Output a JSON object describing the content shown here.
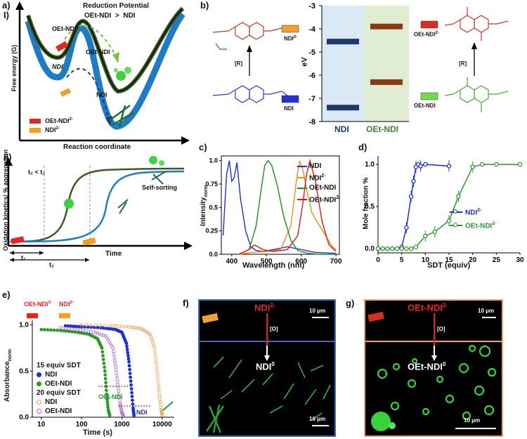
{
  "panel_a": {
    "label": "a)",
    "sub_I": "I)",
    "sub_II": "II)",
    "title_line1": "Reduction Potential",
    "title_line2": "OEt-NDI  >  NDI",
    "y_axis": "Free energy (G)",
    "x_axis": "Reaction coordinate",
    "labels": [
      "OEt-NDI2-",
      "OEt-NDI",
      "NDI-",
      "NDI"
    ],
    "legend": [
      {
        "text": "OEt-NDI",
        "sup": "2-",
        "color": "#e52420"
      },
      {
        "text": "NDI",
        "sup": "2-",
        "color": "#f39c2a"
      }
    ],
    "kin_y_axis": "Oxidation kinetics/ % aggregation",
    "kin_x_axis": "Time",
    "t_compare": "t₂ < t₂",
    "self_sorting": "Self-sorting",
    "t1": "t₁",
    "t2": "t₂",
    "colors": {
      "green": "#3a5a22",
      "blue": "#1e7bc4"
    }
  },
  "panel_b": {
    "label": "b)",
    "y_axis": "eV",
    "ticks": [
      "-3",
      "-4",
      "-5",
      "-6",
      "-7",
      "-8"
    ],
    "columns": [
      "NDI",
      "OEt-NDI"
    ],
    "mol_labels": [
      "NDI2-",
      "NDI",
      "OEt-NDI2-",
      "OEt-NDI"
    ],
    "arrow_label": "[R]",
    "levels": {
      "NDI": [
        -4.55,
        -7.4
      ],
      "OEt-NDI": [
        -3.9,
        -6.3
      ]
    },
    "colors": {
      "ndi": "#1d3a6b",
      "oet": "#8b3a12",
      "ndi_bg": "#dbe8f5",
      "oet_bg": "#e1edd3"
    }
  },
  "panel_c": {
    "label": "c)",
    "xlabel": "Wavelength (nm)",
    "ylabel": "Intensity",
    "ylabel_sub": "norm",
    "xticks": [
      "400",
      "500",
      "600",
      "700"
    ],
    "yticks": [
      "0.0",
      "0.25",
      "0.5",
      "0.75",
      "1.0"
    ],
    "legend": [
      {
        "name": "NDI",
        "color": "#1f2fd0"
      },
      {
        "name": "NDI2-",
        "color": "#f28c1a"
      },
      {
        "name": "OEt-NDI",
        "color": "#1e8c1e"
      },
      {
        "name": "OEt-NDI2-",
        "color": "#e01818"
      }
    ]
  },
  "panel_d": {
    "label": "d)",
    "xlabel": "SDT (equiv)",
    "ylabel": "Mole fraction %",
    "xticks": [
      "0",
      "5",
      "10",
      "15",
      "20",
      "25",
      "30"
    ],
    "yticks": [
      "0.0",
      "0.5",
      "1.0"
    ],
    "legend": [
      {
        "name": "NDI2-",
        "color": "#1f2fd0"
      },
      {
        "name": "OEt-NDI2-",
        "color": "#2d9a2d"
      }
    ]
  },
  "panel_e": {
    "label": "e)",
    "top_legend": [
      "OEt-NDI2-",
      "NDI2-"
    ],
    "ylabel": "Absorbance",
    "ylabel_sub": "norm",
    "xlabel": "Time (s)",
    "xticks": [
      "10",
      "100",
      "1000",
      "10000"
    ],
    "yticks": [
      "0.0",
      "0.5",
      "1.0"
    ],
    "group1": "15 equiv SDT",
    "group2": "20 equiv SDT",
    "items": [
      "NDI",
      "OEt-NDI",
      "NDI",
      "OEt-NDI"
    ],
    "inner_labels": [
      "OEt-NDI",
      "NDI"
    ]
  },
  "panel_f": {
    "label": "f)",
    "top_text": "NDI2-",
    "ox": "[O]",
    "product": "NDI0",
    "scale1": "10 μm",
    "scale2": "10 μm"
  },
  "panel_g": {
    "label": "g)",
    "top_text": "OEt-NDI2-",
    "ox": "[O]",
    "product": "OEt-NDI0",
    "scale1": "10 μm",
    "scale2": "10 μm"
  },
  "chart_data": [
    {
      "type": "line",
      "title": "",
      "xlabel": "Wavelength (nm)",
      "ylabel": "Intensity norm",
      "xlim": [
        370,
        710
      ],
      "ylim": [
        0,
        1.05
      ],
      "series": [
        {
          "name": "NDI",
          "x": [
            375,
            385,
            393,
            400,
            407,
            415,
            425,
            440,
            455,
            470,
            490,
            520,
            560,
            600,
            640,
            700
          ],
          "y": [
            0.2,
            0.85,
            1.0,
            0.78,
            0.82,
            0.98,
            0.6,
            0.25,
            0.08,
            0.04,
            0.03,
            0.05,
            0.08,
            0.05,
            0.02,
            0.01
          ]
        },
        {
          "name": "NDI2-",
          "x": [
            420,
            460,
            500,
            540,
            570,
            585,
            595,
            605,
            615,
            630,
            650,
            670,
            690,
            700
          ],
          "y": [
            0.0,
            0.02,
            0.03,
            0.05,
            0.3,
            0.75,
            1.0,
            0.9,
            0.7,
            0.45,
            0.32,
            0.2,
            0.08,
            0.05
          ]
        },
        {
          "name": "OEt-NDI",
          "x": [
            420,
            450,
            470,
            485,
            495,
            505,
            515,
            530,
            550,
            570,
            590,
            620,
            650,
            700
          ],
          "y": [
            0.0,
            0.05,
            0.3,
            0.7,
            0.95,
            1.0,
            0.95,
            0.75,
            0.4,
            0.15,
            0.04,
            0.01,
            0.0,
            0.0
          ]
        },
        {
          "name": "OEt-NDI2-",
          "x": [
            420,
            450,
            465,
            475,
            490,
            520,
            560,
            590,
            605,
            615,
            625,
            640,
            660,
            680,
            700
          ],
          "y": [
            0.0,
            0.05,
            0.1,
            0.08,
            0.05,
            0.03,
            0.05,
            0.2,
            0.55,
            0.85,
            1.0,
            0.8,
            0.35,
            0.1,
            0.03
          ]
        }
      ]
    },
    {
      "type": "scatter",
      "title": "",
      "xlabel": "SDT (equiv)",
      "ylabel": "Mole fraction %",
      "xlim": [
        0,
        30
      ],
      "ylim": [
        -0.05,
        1.1
      ],
      "series": [
        {
          "name": "NDI2-",
          "x": [
            0,
            1,
            2,
            3,
            4,
            5,
            6,
            7,
            7.5,
            8,
            8.5,
            9,
            10,
            15
          ],
          "y": [
            0,
            0,
            0,
            0,
            0,
            0.02,
            0.25,
            0.62,
            0.8,
            0.97,
            1.0,
            0.98,
            1.0,
            0.98
          ]
        },
        {
          "name": "OEt-NDI2-",
          "x": [
            0,
            1,
            2,
            3,
            4,
            5,
            6,
            7,
            8,
            10,
            12,
            15,
            17,
            20,
            22,
            25,
            30
          ],
          "y": [
            0,
            0,
            0,
            0,
            0,
            0.0,
            0.0,
            0.0,
            0.02,
            0.15,
            0.2,
            0.33,
            0.62,
            0.97,
            1.0,
            1.0,
            1.0
          ]
        }
      ]
    },
    {
      "type": "scatter",
      "title": "",
      "xlabel": "Time (s)",
      "ylabel": "Absorbance norm",
      "xscale": "log",
      "xlim": [
        6,
        20000
      ],
      "ylim": [
        0,
        1.05
      ],
      "series": [
        {
          "name": "NDI (15 equiv SDT)",
          "x": [
            40,
            100,
            300,
            700,
            1000,
            1300,
            1500,
            1700,
            1900,
            2000
          ],
          "y": [
            0.99,
            0.98,
            0.97,
            0.95,
            0.92,
            0.8,
            0.6,
            0.35,
            0.1,
            0.02
          ]
        },
        {
          "name": "OEt-NDI (15 equiv SDT)",
          "x": [
            10,
            30,
            80,
            150,
            250,
            320,
            380,
            420,
            460,
            500
          ],
          "y": [
            0.95,
            0.94,
            0.92,
            0.9,
            0.85,
            0.75,
            0.5,
            0.25,
            0.08,
            0.02
          ]
        },
        {
          "name": "NDI (20 equiv SDT)",
          "x": [
            100,
            500,
            1500,
            3000,
            5000,
            6500,
            7500,
            8500,
            9500,
            10000
          ],
          "y": [
            1.0,
            0.99,
            0.98,
            0.96,
            0.9,
            0.75,
            0.5,
            0.25,
            0.08,
            0.02
          ]
        },
        {
          "name": "OEt-NDI (20 equiv SDT)",
          "x": [
            30,
            80,
            200,
            400,
            600,
            700,
            800,
            900,
            1000,
            1100
          ],
          "y": [
            0.97,
            0.95,
            0.92,
            0.88,
            0.75,
            0.55,
            0.35,
            0.15,
            0.05,
            0.01
          ]
        }
      ]
    },
    {
      "type": "bar",
      "title": "",
      "ylabel": "eV",
      "categories": [
        "NDI",
        "OEt-NDI"
      ],
      "series": [
        {
          "name": "upper level",
          "values": [
            -4.55,
            -3.9
          ]
        },
        {
          "name": "lower level",
          "values": [
            -7.4,
            -6.3
          ]
        }
      ],
      "ylim": [
        -8,
        -3
      ]
    }
  ]
}
